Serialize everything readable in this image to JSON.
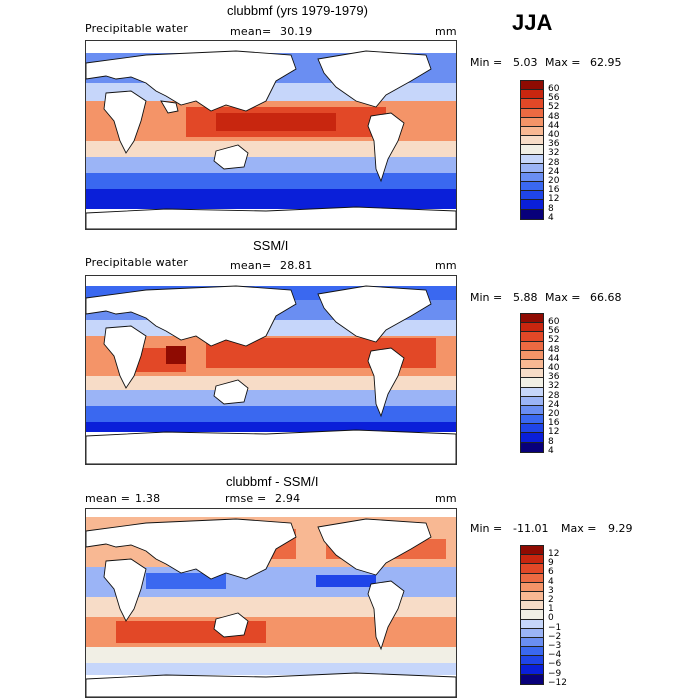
{
  "season": "JJA",
  "colors": {
    "pw": [
      "#08007a",
      "#0a1fd9",
      "#1f45e8",
      "#3a68f0",
      "#6a8ef2",
      "#9bb4f6",
      "#c6d6fa",
      "#f1efe5",
      "#f7dcc7",
      "#f8b893",
      "#f49468",
      "#ec6a42",
      "#e24827",
      "#c8260f",
      "#8f0b02"
    ],
    "diff": [
      "#08007a",
      "#0a1fd9",
      "#1f45e8",
      "#3a68f0",
      "#6a8ef2",
      "#9bb4f6",
      "#c6d6fa",
      "#f1efe5",
      "#f7dcc7",
      "#f8b893",
      "#f49468",
      "#ec6a42",
      "#e24827",
      "#c8260f",
      "#8f0b02"
    ]
  },
  "panels": [
    {
      "title": "clubbmf (yrs 1979-1979)",
      "left_label": "Precipitable water",
      "mean_label": "mean=",
      "mean_value": "30.19",
      "units": "mm",
      "min_label": "Min =",
      "min_value": "5.03",
      "max_label": "Max =",
      "max_value": "62.95",
      "colorbar_labels": [
        "60",
        "56",
        "52",
        "48",
        "44",
        "40",
        "36",
        "32",
        "28",
        "24",
        "20",
        "16",
        "12",
        "8",
        "4"
      ]
    },
    {
      "title": "SSM/I",
      "left_label": "Precipitable water",
      "mean_label": "mean=",
      "mean_value": "28.81",
      "units": "mm",
      "min_label": "Min =",
      "min_value": "5.88",
      "max_label": "Max =",
      "max_value": "66.68",
      "colorbar_labels": [
        "60",
        "56",
        "52",
        "48",
        "44",
        "40",
        "36",
        "32",
        "28",
        "24",
        "20",
        "16",
        "12",
        "8",
        "4"
      ]
    },
    {
      "title": "clubbmf - SSM/I",
      "left_label": "mean =",
      "left_value": "1.38",
      "mid_label": "rmse =",
      "mid_value": "2.94",
      "units": "mm",
      "min_label": "Min =",
      "min_value": "-11.01",
      "max_label": "Max =",
      "max_value": "9.29",
      "colorbar_labels": [
        "12",
        "9",
        "6",
        "4",
        "3",
        "2",
        "1",
        "0",
        "−1",
        "−2",
        "−3",
        "−4",
        "−6",
        "−9",
        "−12"
      ]
    }
  ]
}
